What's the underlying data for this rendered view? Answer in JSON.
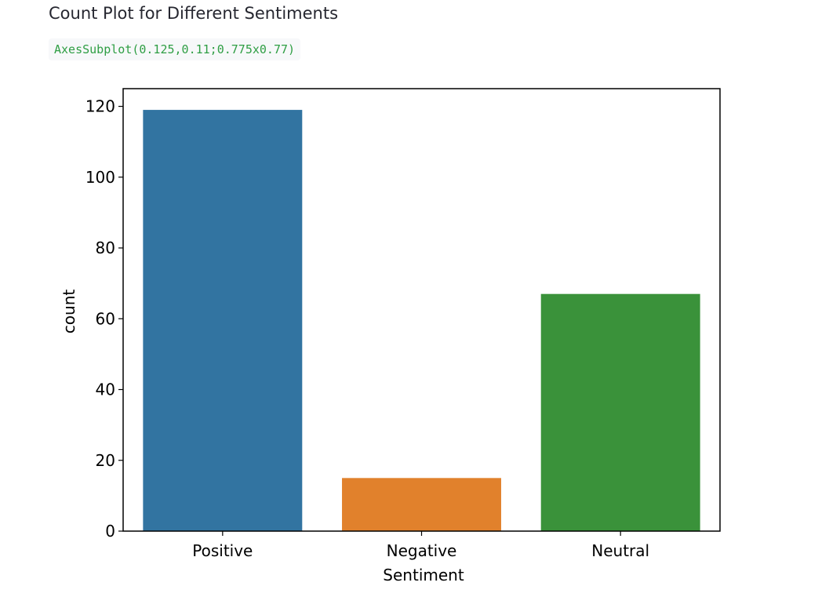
{
  "header": {
    "title": "Count Plot for Different Sentiments",
    "code_output": "AxesSubplot(0.125,0.11;0.775x0.77)"
  },
  "chart_data": {
    "type": "bar",
    "categories": [
      "Positive",
      "Negative",
      "Neutral"
    ],
    "values": [
      119,
      15,
      67
    ],
    "colors": [
      "#3274a1",
      "#e1812c",
      "#3a923a"
    ],
    "xlabel": "Sentiment",
    "ylabel": "count",
    "ylim": [
      0,
      125
    ],
    "yticks": [
      0,
      20,
      40,
      60,
      80,
      100,
      120
    ],
    "grid": false,
    "legend": "none"
  }
}
